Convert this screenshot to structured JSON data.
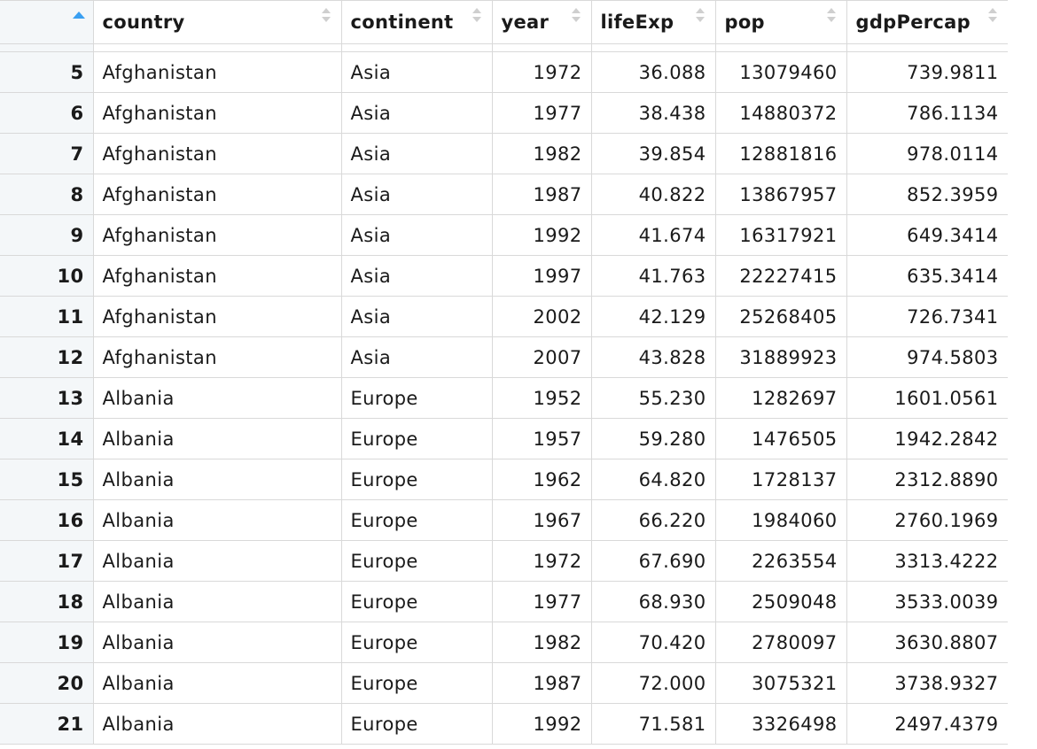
{
  "table": {
    "columns": [
      {
        "key": "index",
        "label": ""
      },
      {
        "key": "country",
        "label": "country"
      },
      {
        "key": "continent",
        "label": "continent"
      },
      {
        "key": "year",
        "label": "year"
      },
      {
        "key": "lifeExp",
        "label": "lifeExp"
      },
      {
        "key": "pop",
        "label": "pop"
      },
      {
        "key": "gdpPercap",
        "label": "gdpPercap"
      }
    ],
    "sort": {
      "column": "index",
      "direction": "ascending"
    },
    "rows": [
      [
        "5",
        "Afghanistan",
        "Asia",
        "1972",
        "36.088",
        "13079460",
        "739.9811"
      ],
      [
        "6",
        "Afghanistan",
        "Asia",
        "1977",
        "38.438",
        "14880372",
        "786.1134"
      ],
      [
        "7",
        "Afghanistan",
        "Asia",
        "1982",
        "39.854",
        "12881816",
        "978.0114"
      ],
      [
        "8",
        "Afghanistan",
        "Asia",
        "1987",
        "40.822",
        "13867957",
        "852.3959"
      ],
      [
        "9",
        "Afghanistan",
        "Asia",
        "1992",
        "41.674",
        "16317921",
        "649.3414"
      ],
      [
        "10",
        "Afghanistan",
        "Asia",
        "1997",
        "41.763",
        "22227415",
        "635.3414"
      ],
      [
        "11",
        "Afghanistan",
        "Asia",
        "2002",
        "42.129",
        "25268405",
        "726.7341"
      ],
      [
        "12",
        "Afghanistan",
        "Asia",
        "2007",
        "43.828",
        "31889923",
        "974.5803"
      ],
      [
        "13",
        "Albania",
        "Europe",
        "1952",
        "55.230",
        "1282697",
        "1601.0561"
      ],
      [
        "14",
        "Albania",
        "Europe",
        "1957",
        "59.280",
        "1476505",
        "1942.2842"
      ],
      [
        "15",
        "Albania",
        "Europe",
        "1962",
        "64.820",
        "1728137",
        "2312.8890"
      ],
      [
        "16",
        "Albania",
        "Europe",
        "1967",
        "66.220",
        "1984060",
        "2760.1969"
      ],
      [
        "17",
        "Albania",
        "Europe",
        "1972",
        "67.690",
        "2263554",
        "3313.4222"
      ],
      [
        "18",
        "Albania",
        "Europe",
        "1977",
        "68.930",
        "2509048",
        "3533.0039"
      ],
      [
        "19",
        "Albania",
        "Europe",
        "1982",
        "70.420",
        "2780097",
        "3630.8807"
      ],
      [
        "20",
        "Albania",
        "Europe",
        "1987",
        "72.000",
        "3075321",
        "3738.9327"
      ],
      [
        "21",
        "Albania",
        "Europe",
        "1992",
        "71.581",
        "3326498",
        "2497.4379"
      ]
    ]
  },
  "icons": {
    "sort_active": "sort-ascending-icon",
    "sort_inactive": "sort-both-icon"
  },
  "colors": {
    "sort_accent": "#3a9ff1",
    "index_background": "#f4f7f9",
    "grid_line": "#d9d9d9"
  }
}
